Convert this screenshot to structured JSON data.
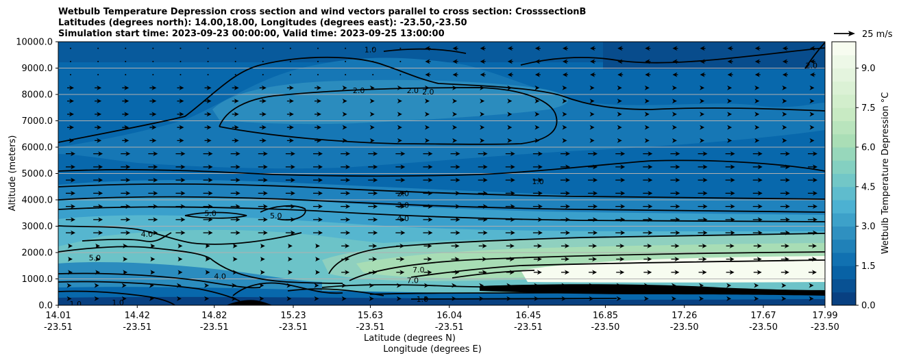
{
  "chart_data": {
    "type": "heatmap",
    "title_lines": [
      "Wetbulb Temperature Depression cross section and wind vectors parallel to cross section: CrosssectionB",
      "Latitudes (degrees north): 14.00,18.00, Longitudes (degrees east): -23.50,-23.50",
      "Simulation start time: 2023-09-23 00:00:00, Valid time: 2023-09-25 13:00:00"
    ],
    "xlabel_lat": "Latitude (degrees N)",
    "xlabel_lon": "Longitude (degrees E)",
    "ylabel": "Altitude (meters)",
    "ylim": [
      0,
      10000
    ],
    "yticks": [
      "0.0",
      "1000.0",
      "2000.0",
      "3000.0",
      "4000.0",
      "5000.0",
      "6000.0",
      "7000.0",
      "8000.0",
      "9000.0",
      "10000.0"
    ],
    "ytick_values": [
      0,
      1000,
      2000,
      3000,
      4000,
      5000,
      6000,
      7000,
      8000,
      9000,
      10000
    ],
    "xlim": [
      14.01,
      17.99
    ],
    "xticks_lat": [
      "14.01",
      "14.42",
      "14.82",
      "15.23",
      "15.63",
      "16.04",
      "16.45",
      "16.85",
      "17.26",
      "17.67",
      "17.99"
    ],
    "xticks_lat_values": [
      14.01,
      14.42,
      14.82,
      15.23,
      15.63,
      16.04,
      16.45,
      16.85,
      17.26,
      17.67,
      17.99
    ],
    "xticks_lon": [
      "-23.51",
      "-23.51",
      "-23.51",
      "-23.51",
      "-23.51",
      "-23.51",
      "-23.51",
      "-23.50",
      "-23.50",
      "-23.50",
      "-23.50"
    ],
    "grid_y": true,
    "colorbar": {
      "label": "Wetbulb Temperature Depression °C",
      "range": [
        0,
        10
      ],
      "ticks": [
        "0.0",
        "1.5",
        "3.0",
        "4.5",
        "6.0",
        "7.5",
        "9.0"
      ],
      "tick_values": [
        0,
        1.5,
        3.0,
        4.5,
        6.0,
        7.5,
        9.0
      ],
      "levels": 20,
      "colors": [
        "#084081",
        "#0868ac",
        "#2b8cbe",
        "#4eb3d3",
        "#7bccc4",
        "#a8ddb5",
        "#ccebc5",
        "#e0f3db",
        "#f7fcf0"
      ]
    },
    "wind_reference": {
      "label": "25 m/s",
      "speed": 25
    },
    "contour_labels": [
      {
        "text": "1.0",
        "lat": 15.63,
        "alt": 9700
      },
      {
        "text": "2.0",
        "lat": 15.57,
        "alt": 8150
      },
      {
        "text": "2.0",
        "lat": 15.85,
        "alt": 8150
      },
      {
        "text": "2.0",
        "lat": 15.93,
        "alt": 8100
      },
      {
        "text": "2.0",
        "lat": 17.92,
        "alt": 9100
      },
      {
        "text": "1.0",
        "lat": 16.5,
        "alt": 4700
      },
      {
        "text": "2.0",
        "lat": 15.8,
        "alt": 4250
      },
      {
        "text": "3.0",
        "lat": 15.8,
        "alt": 3800
      },
      {
        "text": "4.0",
        "lat": 15.8,
        "alt": 3300
      },
      {
        "text": "5.0",
        "lat": 14.8,
        "alt": 3500
      },
      {
        "text": "5.0",
        "lat": 15.14,
        "alt": 3400
      },
      {
        "text": "4.0",
        "lat": 14.47,
        "alt": 2700
      },
      {
        "text": "5.0",
        "lat": 14.2,
        "alt": 1800
      },
      {
        "text": "4.0",
        "lat": 14.85,
        "alt": 1100
      },
      {
        "text": "7.0",
        "lat": 15.88,
        "alt": 1350
      },
      {
        "text": "7.0",
        "lat": 15.85,
        "alt": 950
      },
      {
        "text": "1.0",
        "lat": 15.9,
        "alt": 230
      },
      {
        "text": "1.0",
        "lat": 14.1,
        "alt": 50
      },
      {
        "text": "1.0",
        "lat": 14.32,
        "alt": 100
      }
    ]
  }
}
